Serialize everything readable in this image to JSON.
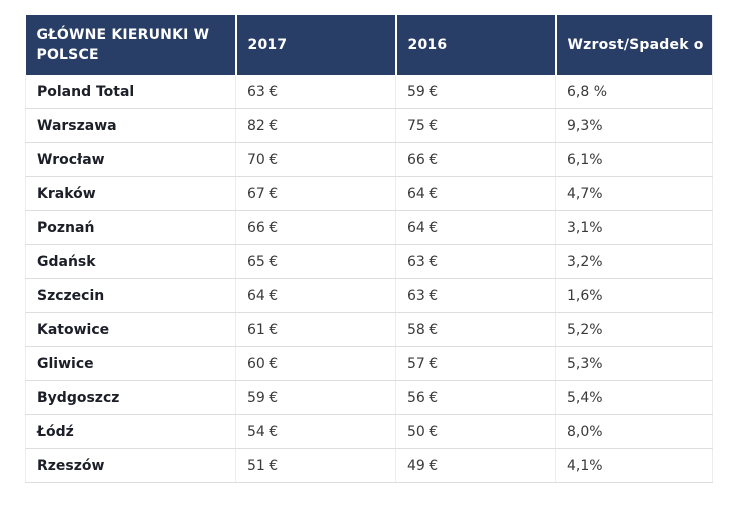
{
  "colors": {
    "header_background": "#293E66",
    "header_text": "#ffffff",
    "row_label_text": "#1c1f28",
    "row_value_text": "#3a3a3a",
    "grid_line": "#dedede",
    "page_background": "#ffffff"
  },
  "table": {
    "columns": [
      {
        "key": "city",
        "label": "GŁÓWNE KIERUNKI W\n POLSCE"
      },
      {
        "key": "y2017",
        "label": "2017"
      },
      {
        "key": "y2016",
        "label": "2016"
      },
      {
        "key": "change",
        "label": "Wzrost/Spadek o"
      }
    ],
    "rows": [
      {
        "city": "Poland Total",
        "y2017": "63 €",
        "y2016": "59 €",
        "change": "6,8 %"
      },
      {
        "city": "Warszawa",
        "y2017": "82 €",
        "y2016": "75 €",
        "change": "9,3%"
      },
      {
        "city": "Wrocław",
        "y2017": "70 €",
        "y2016": "66 €",
        "change": "6,1%"
      },
      {
        "city": "Kraków",
        "y2017": "67 €",
        "y2016": "64 €",
        "change": "4,7%"
      },
      {
        "city": "Poznań",
        "y2017": "66 €",
        "y2016": "64 €",
        "change": "3,1%"
      },
      {
        "city": "Gdańsk",
        "y2017": "65 €",
        "y2016": "63 €",
        "change": "3,2%"
      },
      {
        "city": "Szczecin",
        "y2017": "64 €",
        "y2016": "63 €",
        "change": "1,6%"
      },
      {
        "city": "Katowice",
        "y2017": "61 €",
        "y2016": "58 €",
        "change": "5,2%"
      },
      {
        "city": "Gliwice",
        "y2017": "60 €",
        "y2016": "57 €",
        "change": "5,3%"
      },
      {
        "city": "Bydgoszcz",
        "y2017": "59 €",
        "y2016": "56 €",
        "change": "5,4%"
      },
      {
        "city": "Łódź",
        "y2017": "54 €",
        "y2016": "50 €",
        "change": "8,0%"
      },
      {
        "city": "Rzeszów",
        "y2017": "51 €",
        "y2016": "49 €",
        "change": "4,1%"
      }
    ]
  }
}
